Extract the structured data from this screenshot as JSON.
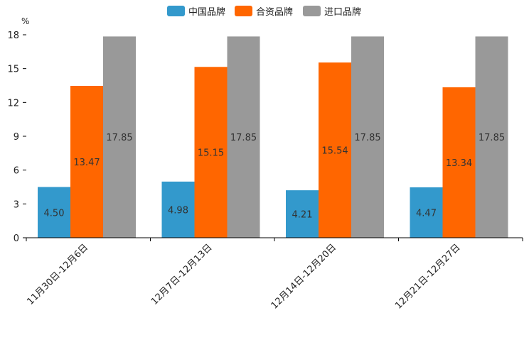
{
  "chart_data": {
    "type": "bar",
    "title": "",
    "ylabel": "%",
    "xlabel": "",
    "ylim": [
      0,
      18
    ],
    "yticks": [
      0,
      3,
      6,
      9,
      12,
      15,
      18
    ],
    "categories": [
      "11月30日-12月6日",
      "12月7日-12月13日",
      "12月14日-12月20日",
      "12月21日-12月27日"
    ],
    "series": [
      {
        "name": "中国品牌",
        "color": "#3399cc",
        "values": [
          4.5,
          4.98,
          4.21,
          4.47
        ],
        "labels": [
          "4.50",
          "4.98",
          "4.21",
          "4.47"
        ]
      },
      {
        "name": "合资品牌",
        "color": "#ff6600",
        "values": [
          13.47,
          15.15,
          15.54,
          13.34
        ],
        "labels": [
          "13.47",
          "15.15",
          "15.54",
          "13.34"
        ]
      },
      {
        "name": "进口品牌",
        "color": "#999999",
        "values": [
          17.85,
          17.85,
          17.85,
          17.85
        ],
        "labels": [
          "17.85",
          "17.85",
          "17.85",
          "17.85"
        ]
      }
    ],
    "legend_position": "top-center",
    "grid": false
  }
}
